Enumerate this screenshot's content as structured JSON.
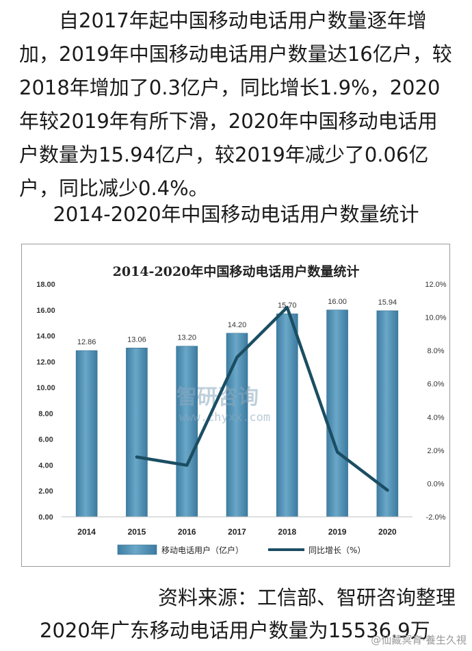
{
  "article": {
    "paragraph": "自2017年起中国移动电话用户数量逐年增加，2019年中国移动电话用户数量达16亿户，较2018年增加了0.3亿户，同比增长1.9%，2020年较2019年有所下滑，2020年中国移动电话用户数量为15.94亿户，较2019年减少了0.06亿户，同比减少0.4%。",
    "chart_caption": "2014-2020年中国移动电话用户数量统计",
    "source": "资料来源：工信部、智研咨询整理",
    "bottom_line": "2020年广东移动电话用户数量为15536.9万",
    "weibo_watermark": "@仙藏冥育·養生久視"
  },
  "chart_data": {
    "type": "bar",
    "title": "2014-2020年中国移动电话用户数量统计",
    "categories": [
      "2014",
      "2015",
      "2016",
      "2017",
      "2018",
      "2019",
      "2020"
    ],
    "series": [
      {
        "name": "移动电话用户（亿户）",
        "type": "bar",
        "axis": "left",
        "values": [
          12.86,
          13.06,
          13.2,
          14.2,
          15.7,
          16.0,
          15.94
        ],
        "color": "#4f8fb4"
      },
      {
        "name": "同比增长（%）",
        "type": "line",
        "axis": "right",
        "values": [
          null,
          1.6,
          1.1,
          7.6,
          10.6,
          1.9,
          -0.4
        ],
        "color": "#1b4e63"
      }
    ],
    "data_labels": [
      "12.86",
      "13.06",
      "13.20",
      "14.20",
      "15.70",
      "16.00",
      "15.94"
    ],
    "y_left": {
      "min": 0,
      "max": 18,
      "ticks": [
        "0.00",
        "2.00",
        "4.00",
        "6.00",
        "8.00",
        "10.00",
        "12.00",
        "14.00",
        "16.00",
        "18.00"
      ]
    },
    "y_right": {
      "min": -2,
      "max": 12,
      "ticks": [
        "-2.0%",
        "0.0%",
        "2.0%",
        "4.0%",
        "6.0%",
        "8.0%",
        "10.0%",
        "12.0%"
      ]
    },
    "grid": false,
    "legend_position": "bottom",
    "watermark": {
      "brand": "智研咨询",
      "url": "www.chyxx.com"
    }
  }
}
